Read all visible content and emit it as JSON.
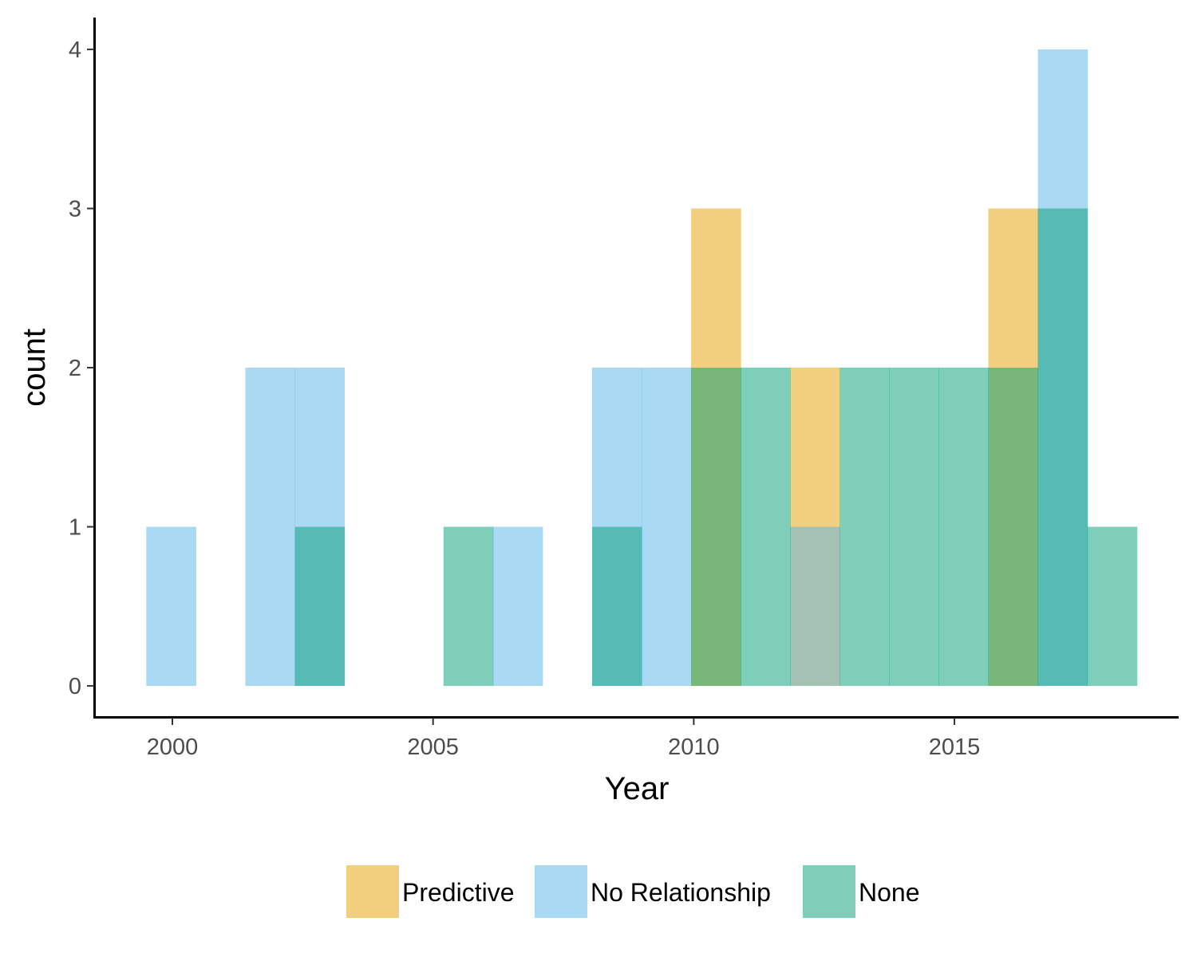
{
  "chart_data": {
    "type": "bar",
    "subtype": "overlapping histogram",
    "xlabel": "Year",
    "ylabel": "count",
    "xlim": [
      1998.5,
      2019.3
    ],
    "ylim": [
      -0.2,
      4.2
    ],
    "binwidth": 0.95,
    "x_ticks": [
      2000,
      2005,
      2010,
      2015
    ],
    "y_ticks": [
      0,
      1,
      2,
      3,
      4
    ],
    "grid": false,
    "legend_position": "bottom",
    "bin_starts": [
      1999.5,
      2000.45,
      2001.4,
      2002.35,
      2003.3,
      2004.25,
      2005.2,
      2006.15,
      2007.1,
      2008.05,
      2009.0,
      2009.95,
      2010.9,
      2011.85,
      2012.8,
      2013.75,
      2014.7,
      2015.65,
      2016.6,
      2017.55
    ],
    "series": [
      {
        "name": "Predictive",
        "color": "#E69F00",
        "values": [
          0,
          0,
          0,
          0,
          0,
          0,
          0,
          0,
          0,
          0,
          0,
          3,
          0,
          2,
          0,
          0,
          0,
          3,
          0,
          0
        ]
      },
      {
        "name": "No Relationship",
        "color": "#56B4E9",
        "values": [
          1,
          0,
          2,
          2,
          0,
          0,
          0,
          1,
          0,
          2,
          2,
          0,
          0,
          1,
          0,
          0,
          0,
          0,
          4,
          0
        ]
      },
      {
        "name": "None",
        "color": "#009E73",
        "values": [
          0,
          0,
          0,
          1,
          0,
          0,
          1,
          0,
          0,
          1,
          0,
          2,
          2,
          0,
          2,
          2,
          2,
          2,
          3,
          1
        ]
      }
    ]
  }
}
